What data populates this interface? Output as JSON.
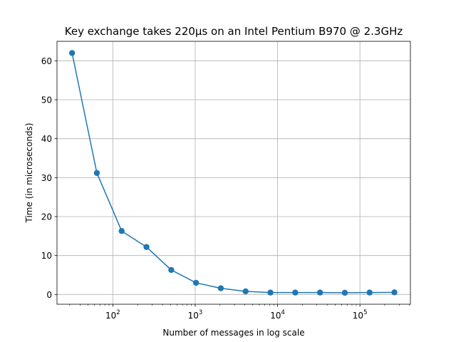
{
  "chart_data": {
    "type": "line",
    "title": "Key exchange takes 220µs on an Intel Pentium B970 @ 2.3GHz",
    "xlabel": "Number of messages in log scale",
    "ylabel": "Time (in microseconds)",
    "x_scale": "log",
    "grid": true,
    "xlim": [
      21,
      410000
    ],
    "ylim": [
      -2.5,
      65
    ],
    "x_ticks": [
      {
        "value": 100,
        "base": "10",
        "exp": "2"
      },
      {
        "value": 1000,
        "base": "10",
        "exp": "3"
      },
      {
        "value": 10000,
        "base": "10",
        "exp": "4"
      },
      {
        "value": 100000,
        "base": "10",
        "exp": "5"
      }
    ],
    "y_ticks": [
      0,
      10,
      20,
      30,
      40,
      50,
      60
    ],
    "series": [
      {
        "color": "#1f77b4",
        "marker": "circle",
        "x": [
          32,
          64,
          128,
          256,
          512,
          1024,
          2048,
          4096,
          8192,
          16384,
          32768,
          65536,
          131072,
          262144
        ],
        "y": [
          62.0,
          31.2,
          16.3,
          12.2,
          6.3,
          3.0,
          1.6,
          0.8,
          0.5,
          0.5,
          0.5,
          0.45,
          0.5,
          0.55
        ]
      }
    ]
  }
}
